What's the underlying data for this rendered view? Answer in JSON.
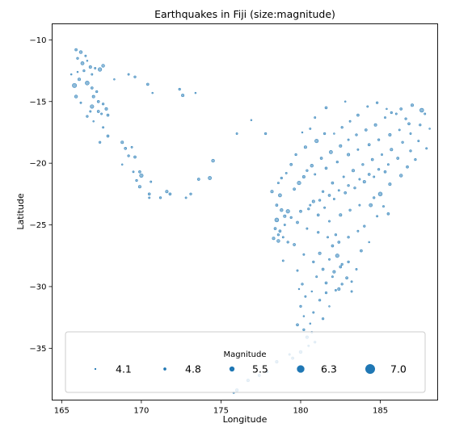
{
  "chart_data": {
    "type": "scatter",
    "title": "Earthquakes in Fiji (size:magnitude)",
    "xlabel": "Longitude",
    "ylabel": "Latitude",
    "xlim": [
      164.4,
      188.6
    ],
    "ylim": [
      -39.2,
      -8.7
    ],
    "xticks": [
      165,
      170,
      175,
      180,
      185
    ],
    "yticks": [
      -10,
      -15,
      -20,
      -25,
      -30,
      -35
    ],
    "point_color": "#1f77b4",
    "point_opacity": 0.5,
    "grid": false,
    "legend": {
      "title": "Magnitude",
      "placement": "lower-center",
      "entries": [
        {
          "label": "4.1",
          "mag": 4.1
        },
        {
          "label": "4.8",
          "mag": 4.8
        },
        {
          "label": "5.5",
          "mag": 5.5
        },
        {
          "label": "6.3",
          "mag": 6.3
        },
        {
          "label": "7.0",
          "mag": 7.0
        }
      ]
    },
    "points": [
      [
        165.9,
        -10.8,
        4.8
      ],
      [
        166.2,
        -11.0,
        5.0
      ],
      [
        166.5,
        -11.3,
        4.6
      ],
      [
        166.0,
        -11.5,
        4.7
      ],
      [
        166.6,
        -11.7,
        4.5
      ],
      [
        166.3,
        -11.9,
        5.1
      ],
      [
        166.8,
        -12.2,
        4.9
      ],
      [
        167.1,
        -12.3,
        4.6
      ],
      [
        166.4,
        -12.5,
        4.7
      ],
      [
        166.0,
        -12.6,
        4.5
      ],
      [
        167.4,
        -12.4,
        5.2
      ],
      [
        167.6,
        -12.1,
        5.0
      ],
      [
        166.9,
        -12.8,
        4.6
      ],
      [
        166.1,
        -13.2,
        4.9
      ],
      [
        166.6,
        -13.5,
        5.3
      ],
      [
        165.8,
        -13.7,
        5.4
      ],
      [
        166.9,
        -13.9,
        4.8
      ],
      [
        167.2,
        -14.2,
        4.7
      ],
      [
        165.9,
        -14.6,
        5.0
      ],
      [
        167.0,
        -14.6,
        4.9
      ],
      [
        167.3,
        -15.0,
        4.8
      ],
      [
        166.9,
        -15.4,
        5.2
      ],
      [
        167.3,
        -15.8,
        4.8
      ],
      [
        167.6,
        -15.2,
        4.7
      ],
      [
        167.8,
        -15.6,
        4.9
      ],
      [
        167.5,
        -16.0,
        4.6
      ],
      [
        166.8,
        -15.8,
        4.6
      ],
      [
        167.9,
        -16.1,
        4.8
      ],
      [
        166.6,
        -16.2,
        4.7
      ],
      [
        165.6,
        -12.8,
        4.5
      ],
      [
        166.2,
        -15.1,
        4.6
      ],
      [
        167.0,
        -16.6,
        4.5
      ],
      [
        167.6,
        -17.1,
        4.6
      ],
      [
        167.9,
        -17.8,
        4.8
      ],
      [
        167.4,
        -18.3,
        4.7
      ],
      [
        168.8,
        -18.3,
        4.9
      ],
      [
        169.0,
        -18.8,
        4.8
      ],
      [
        169.4,
        -18.7,
        4.6
      ],
      [
        169.2,
        -19.4,
        4.7
      ],
      [
        169.6,
        -19.5,
        4.8
      ],
      [
        168.8,
        -20.1,
        4.5
      ],
      [
        169.5,
        -20.7,
        4.6
      ],
      [
        169.9,
        -20.7,
        4.8
      ],
      [
        170.0,
        -21.0,
        5.2
      ],
      [
        169.7,
        -21.4,
        4.7
      ],
      [
        169.9,
        -21.9,
        4.9
      ],
      [
        170.6,
        -21.5,
        4.6
      ],
      [
        170.5,
        -22.5,
        4.8
      ],
      [
        170.5,
        -22.8,
        4.6
      ],
      [
        171.2,
        -22.8,
        4.7
      ],
      [
        171.6,
        -22.3,
        4.9
      ],
      [
        171.8,
        -22.5,
        4.8
      ],
      [
        172.8,
        -22.8,
        4.6
      ],
      [
        173.1,
        -22.5,
        4.7
      ],
      [
        173.6,
        -21.3,
        4.8
      ],
      [
        174.3,
        -21.2,
        5.1
      ],
      [
        174.5,
        -19.8,
        5.0
      ],
      [
        168.3,
        -13.2,
        4.5
      ],
      [
        169.2,
        -12.8,
        4.6
      ],
      [
        169.6,
        -13.0,
        4.7
      ],
      [
        170.4,
        -13.6,
        4.8
      ],
      [
        170.7,
        -14.3,
        4.5
      ],
      [
        172.4,
        -14.0,
        4.7
      ],
      [
        172.6,
        -14.5,
        4.9
      ],
      [
        173.4,
        -14.3,
        4.5
      ],
      [
        176.9,
        -16.5,
        4.5
      ],
      [
        176.0,
        -17.6,
        4.6
      ],
      [
        177.8,
        -17.6,
        4.7
      ],
      [
        178.6,
        -21.6,
        4.6
      ],
      [
        178.2,
        -22.3,
        4.9
      ],
      [
        178.7,
        -22.6,
        5.1
      ],
      [
        178.5,
        -23.4,
        4.8
      ],
      [
        178.8,
        -23.8,
        5.0
      ],
      [
        179.2,
        -23.9,
        5.2
      ],
      [
        179.0,
        -24.3,
        4.9
      ],
      [
        178.5,
        -24.6,
        5.3
      ],
      [
        178.4,
        -25.3,
        4.8
      ],
      [
        178.6,
        -25.8,
        4.7
      ],
      [
        178.3,
        -26.1,
        4.9
      ],
      [
        178.6,
        -26.3,
        5.0
      ],
      [
        179.6,
        -26.6,
        4.8
      ],
      [
        179.8,
        -28.7,
        4.6
      ],
      [
        180.1,
        -29.8,
        4.7
      ],
      [
        180.7,
        -30.4,
        4.5
      ],
      [
        180.3,
        -30.8,
        4.6
      ],
      [
        180.0,
        -31.6,
        4.7
      ],
      [
        180.2,
        -32.4,
        4.5
      ],
      [
        179.8,
        -33.1,
        4.8
      ],
      [
        180.2,
        -33.5,
        4.7
      ],
      [
        180.7,
        -33.7,
        4.6
      ],
      [
        180.4,
        -34.1,
        4.9
      ],
      [
        180.9,
        -34.5,
        4.7
      ],
      [
        180.5,
        -34.8,
        4.6
      ],
      [
        180.0,
        -35.3,
        5.0
      ],
      [
        179.5,
        -35.8,
        4.8
      ],
      [
        179.3,
        -35.5,
        4.6
      ],
      [
        178.5,
        -36.1,
        4.9
      ],
      [
        177.9,
        -36.9,
        4.7
      ],
      [
        177.4,
        -37.2,
        4.8
      ],
      [
        176.7,
        -37.6,
        4.9
      ],
      [
        176.0,
        -38.4,
        5.0
      ],
      [
        175.8,
        -38.6,
        4.6
      ],
      [
        180.8,
        -23.1,
        4.9
      ],
      [
        181.5,
        -23.6,
        4.6
      ],
      [
        182.2,
        -25.8,
        4.7
      ],
      [
        182.0,
        -26.7,
        4.8
      ],
      [
        182.3,
        -27.5,
        5.2
      ],
      [
        182.6,
        -28.2,
        4.7
      ],
      [
        182.1,
        -28.8,
        4.9
      ],
      [
        182.9,
        -29.3,
        4.8
      ],
      [
        183.2,
        -29.6,
        4.6
      ],
      [
        182.4,
        -30.2,
        4.9
      ],
      [
        181.6,
        -30.5,
        4.7
      ],
      [
        183.5,
        -28.6,
        4.6
      ],
      [
        183.8,
        -27.1,
        4.8
      ],
      [
        184.3,
        -26.4,
        4.5
      ],
      [
        184.0,
        -25.1,
        4.7
      ],
      [
        184.8,
        -24.3,
        4.6
      ],
      [
        184.4,
        -23.4,
        5.1
      ],
      [
        185.0,
        -22.5,
        5.3
      ],
      [
        185.6,
        -21.7,
        4.9
      ],
      [
        186.3,
        -21.0,
        5.0
      ],
      [
        186.7,
        -20.3,
        4.8
      ],
      [
        187.2,
        -19.7,
        4.7
      ],
      [
        187.9,
        -18.8,
        4.6
      ],
      [
        187.6,
        -15.7,
        5.3
      ],
      [
        187.0,
        -15.3,
        4.9
      ],
      [
        186.3,
        -15.6,
        4.8
      ],
      [
        185.7,
        -15.9,
        4.7
      ],
      [
        185.3,
        -16.3,
        4.6
      ],
      [
        184.7,
        -16.9,
        4.9
      ],
      [
        184.1,
        -17.3,
        4.8
      ],
      [
        183.5,
        -17.7,
        4.7
      ],
      [
        183.0,
        -18.1,
        4.6
      ],
      [
        182.5,
        -18.6,
        4.9
      ],
      [
        181.9,
        -19.1,
        5.1
      ],
      [
        181.3,
        -19.6,
        4.8
      ],
      [
        180.7,
        -20.2,
        5.0
      ],
      [
        180.4,
        -20.6,
        4.7
      ],
      [
        180.2,
        -21.1,
        4.9
      ],
      [
        179.9,
        -21.6,
        5.2
      ],
      [
        179.6,
        -22.1,
        4.8
      ],
      [
        180.9,
        -20.9,
        4.6
      ],
      [
        181.6,
        -20.4,
        4.8
      ],
      [
        182.3,
        -19.9,
        4.7
      ],
      [
        183.0,
        -19.3,
        4.9
      ],
      [
        183.6,
        -18.9,
        4.6
      ],
      [
        184.3,
        -18.5,
        4.8
      ],
      [
        184.9,
        -18.1,
        4.7
      ],
      [
        185.6,
        -17.7,
        4.9
      ],
      [
        186.2,
        -17.3,
        4.6
      ],
      [
        186.8,
        -16.8,
        4.8
      ],
      [
        181.0,
        -18.2,
        5.2
      ],
      [
        181.5,
        -17.6,
        4.7
      ],
      [
        180.6,
        -17.2,
        4.6
      ],
      [
        180.3,
        -18.7,
        4.9
      ],
      [
        179.7,
        -19.3,
        4.7
      ],
      [
        179.4,
        -20.1,
        4.8
      ],
      [
        179.1,
        -20.8,
        4.6
      ],
      [
        178.8,
        -21.2,
        4.7
      ],
      [
        182.0,
        -21.6,
        4.8
      ],
      [
        182.7,
        -21.1,
        4.6
      ],
      [
        183.3,
        -20.6,
        4.9
      ],
      [
        183.9,
        -20.1,
        4.7
      ],
      [
        184.5,
        -19.7,
        4.8
      ],
      [
        185.1,
        -19.3,
        4.6
      ],
      [
        185.7,
        -18.9,
        4.9
      ],
      [
        181.4,
        -22.3,
        4.7
      ],
      [
        182.1,
        -22.9,
        4.6
      ],
      [
        182.8,
        -22.4,
        4.8
      ],
      [
        183.4,
        -22.0,
        4.7
      ],
      [
        184.0,
        -21.5,
        4.9
      ],
      [
        184.6,
        -21.1,
        4.6
      ],
      [
        185.3,
        -20.7,
        4.8
      ],
      [
        180.5,
        -23.7,
        4.7
      ],
      [
        181.1,
        -24.2,
        4.8
      ],
      [
        181.8,
        -24.7,
        4.6
      ],
      [
        182.5,
        -24.2,
        4.9
      ],
      [
        183.1,
        -23.8,
        4.7
      ],
      [
        183.7,
        -23.4,
        4.6
      ],
      [
        179.8,
        -24.8,
        4.8
      ],
      [
        180.4,
        -25.3,
        4.6
      ],
      [
        181.1,
        -25.6,
        4.7
      ],
      [
        181.7,
        -26.0,
        4.6
      ],
      [
        182.4,
        -26.4,
        4.8
      ],
      [
        183.0,
        -26.0,
        4.7
      ],
      [
        183.6,
        -25.5,
        4.6
      ],
      [
        181.2,
        -27.3,
        4.9
      ],
      [
        181.8,
        -27.8,
        4.6
      ],
      [
        182.5,
        -28.4,
        4.8
      ],
      [
        183.0,
        -28.0,
        4.7
      ],
      [
        181.0,
        -29.2,
        4.6
      ],
      [
        181.6,
        -29.7,
        4.8
      ],
      [
        182.2,
        -30.3,
        4.6
      ],
      [
        181.2,
        -31.1,
        4.7
      ],
      [
        181.8,
        -31.6,
        4.5
      ],
      [
        180.8,
        -32.1,
        4.6
      ],
      [
        181.4,
        -32.6,
        4.7
      ],
      [
        180.6,
        -33.0,
        4.5
      ],
      [
        184.2,
        -15.4,
        4.6
      ],
      [
        184.8,
        -15.1,
        4.7
      ],
      [
        185.4,
        -15.6,
        4.5
      ],
      [
        186.0,
        -16.0,
        4.6
      ],
      [
        186.6,
        -16.4,
        4.7
      ],
      [
        183.6,
        -16.1,
        4.8
      ],
      [
        183.1,
        -16.6,
        4.6
      ],
      [
        182.6,
        -17.1,
        4.7
      ],
      [
        182.1,
        -17.6,
        4.5
      ],
      [
        180.9,
        -16.3,
        4.6
      ],
      [
        180.1,
        -17.5,
        4.5
      ],
      [
        181.6,
        -15.5,
        4.8
      ],
      [
        182.8,
        -15.0,
        4.5
      ],
      [
        187.8,
        -16.0,
        4.6
      ],
      [
        188.1,
        -17.2,
        4.5
      ],
      [
        187.4,
        -18.2,
        4.6
      ],
      [
        186.9,
        -19.0,
        4.7
      ],
      [
        186.1,
        -19.6,
        4.8
      ],
      [
        185.5,
        -20.1,
        4.6
      ],
      [
        184.9,
        -20.5,
        4.7
      ],
      [
        184.3,
        -20.9,
        4.8
      ],
      [
        183.7,
        -21.3,
        4.6
      ],
      [
        183.0,
        -21.8,
        4.7
      ],
      [
        182.4,
        -22.2,
        4.6
      ],
      [
        181.8,
        -22.6,
        4.8
      ],
      [
        181.2,
        -23.0,
        4.7
      ],
      [
        180.6,
        -23.4,
        4.6
      ],
      [
        180.0,
        -23.9,
        4.8
      ],
      [
        179.4,
        -24.4,
        4.7
      ],
      [
        179.0,
        -25.0,
        4.6
      ],
      [
        178.7,
        -25.5,
        4.8
      ],
      [
        178.9,
        -26.0,
        4.6
      ],
      [
        179.2,
        -26.4,
        4.7
      ],
      [
        180.2,
        -27.4,
        4.6
      ],
      [
        180.8,
        -28.0,
        4.7
      ],
      [
        181.4,
        -28.6,
        4.8
      ],
      [
        182.0,
        -29.2,
        4.6
      ],
      [
        182.6,
        -29.8,
        4.7
      ],
      [
        183.2,
        -30.4,
        4.6
      ],
      [
        184.6,
        -22.8,
        4.7
      ],
      [
        185.2,
        -23.5,
        4.6
      ],
      [
        185.5,
        -24.1,
        4.8
      ],
      [
        186.4,
        -18.3,
        4.7
      ],
      [
        186.9,
        -17.6,
        4.6
      ],
      [
        187.5,
        -16.9,
        4.7
      ],
      [
        178.9,
        -27.9,
        4.6
      ],
      [
        179.9,
        -30.2,
        4.5
      ]
    ]
  }
}
